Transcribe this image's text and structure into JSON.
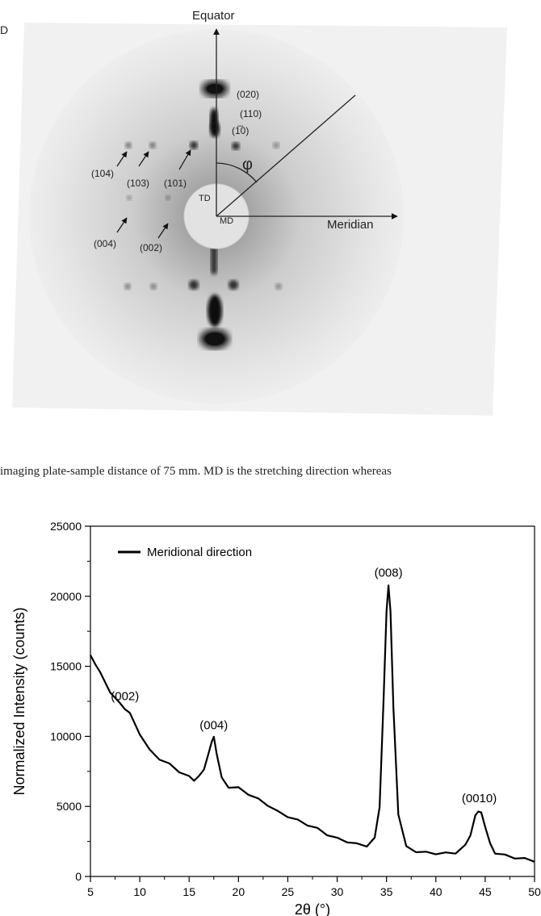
{
  "top_figure": {
    "partial_label": "D",
    "axis_equator": "Equator",
    "axis_meridian": "Meridian",
    "angle_symbol": "φ",
    "td_label": "TD",
    "md_label": "MD",
    "reflections": [
      "(020)",
      "(110)",
      "(1̅0)",
      "(104)",
      "(103)",
      "(101)",
      "(004)",
      "(002)"
    ]
  },
  "caption": {
    "text": "imaging plate-sample distance of 75 mm. MD is the stretching direction whereas"
  },
  "chart_data": {
    "type": "line",
    "xlabel": "2θ (°)",
    "ylabel": "Normalized Intensity (counts)",
    "xlim": [
      5,
      50
    ],
    "ylim": [
      0,
      25000
    ],
    "xticks": [
      5,
      10,
      15,
      20,
      25,
      30,
      35,
      40,
      45,
      50
    ],
    "yticks": [
      0,
      5000,
      10000,
      15000,
      20000,
      25000
    ],
    "legend": {
      "entry": "Meridional direction",
      "placement": "top-left"
    },
    "series": [
      {
        "name": "Meridional direction",
        "color": "#000000",
        "x": [
          5,
          5.5,
          6,
          7,
          8,
          8.5,
          9,
          10,
          11,
          12,
          13,
          14,
          15,
          15.5,
          16,
          16.5,
          17,
          17.3,
          17.5,
          17.8,
          18.3,
          19,
          20,
          21,
          22,
          23,
          24,
          25,
          26,
          27,
          28,
          29,
          30,
          31,
          32,
          33,
          33.8,
          34.3,
          34.7,
          35.0,
          35.2,
          35.4,
          35.7,
          36.2,
          37,
          38,
          39,
          40,
          41,
          42,
          43,
          43.5,
          44,
          44.3,
          44.6,
          45,
          45.5,
          46,
          47,
          48,
          49,
          50
        ],
        "y": [
          15800,
          15200,
          14500,
          13200,
          12300,
          12000,
          11600,
          10200,
          9000,
          8400,
          8000,
          7500,
          7100,
          6900,
          7100,
          7700,
          8800,
          9700,
          9900,
          8800,
          7000,
          6400,
          6300,
          5900,
          5500,
          5100,
          4600,
          4300,
          4000,
          3700,
          3400,
          3000,
          2700,
          2500,
          2300,
          2200,
          2700,
          5000,
          12500,
          19000,
          20700,
          19000,
          12000,
          4500,
          2100,
          1800,
          1700,
          1650,
          1650,
          1700,
          2200,
          3000,
          4300,
          4700,
          4500,
          3600,
          2300,
          1700,
          1500,
          1350,
          1250,
          1050
        ]
      }
    ],
    "annotations": [
      {
        "text": "(002)",
        "x": 8.5,
        "y": 12600
      },
      {
        "text": "(004)",
        "x": 17.5,
        "y": 10500
      },
      {
        "text": "(008)",
        "x": 35.2,
        "y": 21400
      },
      {
        "text": "(0010)",
        "x": 44.4,
        "y": 5300
      }
    ]
  }
}
